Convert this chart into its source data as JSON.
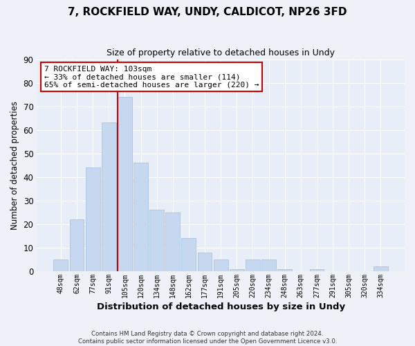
{
  "title": "7, ROCKFIELD WAY, UNDY, CALDICOT, NP26 3FD",
  "subtitle": "Size of property relative to detached houses in Undy",
  "xlabel": "Distribution of detached houses by size in Undy",
  "ylabel": "Number of detached properties",
  "bar_color": "#c5d8f0",
  "bar_edge_color": "#a8c4e0",
  "categories": [
    "48sqm",
    "62sqm",
    "77sqm",
    "91sqm",
    "105sqm",
    "120sqm",
    "134sqm",
    "148sqm",
    "162sqm",
    "177sqm",
    "191sqm",
    "205sqm",
    "220sqm",
    "234sqm",
    "248sqm",
    "263sqm",
    "277sqm",
    "291sqm",
    "305sqm",
    "320sqm",
    "334sqm"
  ],
  "values": [
    5,
    22,
    44,
    63,
    74,
    46,
    26,
    25,
    14,
    8,
    5,
    1,
    5,
    5,
    1,
    0,
    1,
    0,
    0,
    0,
    2
  ],
  "ylim": [
    0,
    90
  ],
  "yticks": [
    0,
    10,
    20,
    30,
    40,
    50,
    60,
    70,
    80,
    90
  ],
  "vline_index": 4,
  "vline_color": "#cc0000",
  "annotation_title": "7 ROCKFIELD WAY: 103sqm",
  "annotation_line1": "← 33% of detached houses are smaller (114)",
  "annotation_line2": "65% of semi-detached houses are larger (220) →",
  "annotation_box_color": "#ffffff",
  "annotation_box_edge": "#cc0000",
  "footer1": "Contains HM Land Registry data © Crown copyright and database right 2024.",
  "footer2": "Contains public sector information licensed under the Open Government Licence v3.0.",
  "background_color": "#eef2f8",
  "plot_background": "#e8eef8",
  "grid_color": "#ffffff",
  "title_fontsize": 11,
  "subtitle_fontsize": 9
}
